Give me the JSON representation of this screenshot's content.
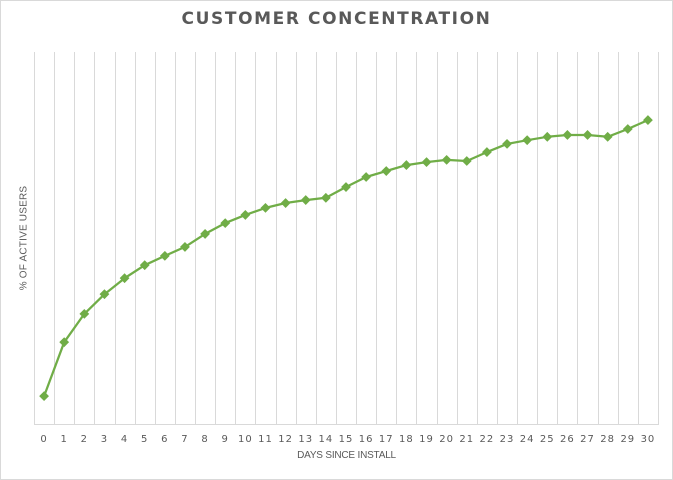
{
  "chart_data": {
    "type": "line",
    "title": "CUSTOMER CONCENTRATION",
    "xlabel": "DAYS SINCE INSTALL",
    "ylabel": "% OF ACTIVE USERS",
    "categories": [
      "0",
      "1",
      "2",
      "3",
      "4",
      "5",
      "6",
      "7",
      "8",
      "9",
      "10",
      "11",
      "12",
      "13",
      "14",
      "15",
      "16",
      "17",
      "18",
      "19",
      "20",
      "21",
      "22",
      "23",
      "24",
      "25",
      "26",
      "27",
      "28",
      "29",
      "30"
    ],
    "series": [
      {
        "name": "% of active users",
        "color": "#70AD47",
        "marker": "diamond",
        "values": [
          7.5,
          22.0,
          29.6,
          34.9,
          39.2,
          42.7,
          45.2,
          47.6,
          51.1,
          54.0,
          56.2,
          58.1,
          59.4,
          60.2,
          60.8,
          63.7,
          66.4,
          68.0,
          69.6,
          70.4,
          71.0,
          70.7,
          73.1,
          75.3,
          76.3,
          77.2,
          77.7,
          77.7,
          77.2,
          79.3,
          81.7
        ]
      }
    ],
    "ylim": [
      0,
      100
    ],
    "y_tick_labels_visible": false,
    "grid": {
      "vertical": true,
      "horizontal": false
    },
    "legend": null
  },
  "colors": {
    "series": "#70AD47",
    "grid": "#D9D9D9",
    "text": "#595959"
  }
}
